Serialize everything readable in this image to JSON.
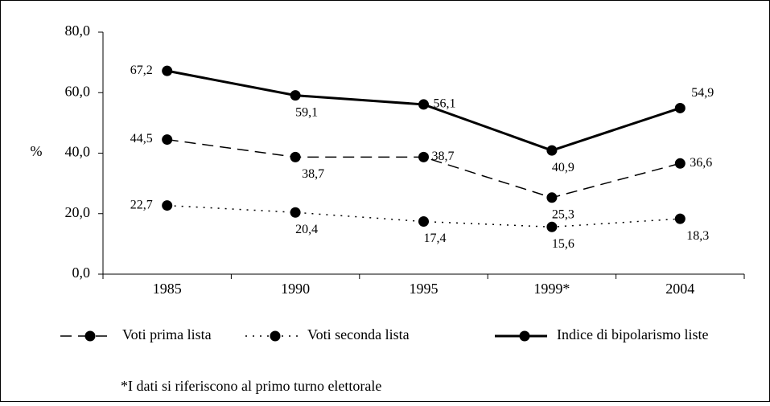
{
  "chart_data": {
    "type": "line",
    "categories": [
      "1985",
      "1990",
      "1995",
      "1999*",
      "2004"
    ],
    "ylabel": "%",
    "ylim": [
      0,
      80
    ],
    "yticks": [
      {
        "value": 0,
        "label": "0,0"
      },
      {
        "value": 20,
        "label": "20,0"
      },
      {
        "value": 40,
        "label": "40,0"
      },
      {
        "value": 60,
        "label": "60,0"
      },
      {
        "value": 80,
        "label": "80,0"
      }
    ],
    "series": [
      {
        "name": "Voti prima lista",
        "color": "#000000",
        "dash": "dashed",
        "values": [
          44.5,
          38.7,
          38.7,
          25.3,
          36.6
        ],
        "value_labels": [
          "44,5",
          "38,7",
          "38,7",
          "25,3",
          "36,6"
        ]
      },
      {
        "name": "Voti seconda lista",
        "color": "#000000",
        "dash": "dotted",
        "values": [
          22.7,
          20.4,
          17.4,
          15.6,
          18.3
        ],
        "value_labels": [
          "22,7",
          "20,4",
          "17,4",
          "15,6",
          "18,3"
        ]
      },
      {
        "name": "Indice di bipolarismo liste",
        "color": "#000000",
        "dash": "solid",
        "values": [
          67.2,
          59.1,
          56.1,
          40.9,
          54.9
        ],
        "value_labels": [
          "67,2",
          "59,1",
          "56,1",
          "40,9",
          "54,9"
        ]
      }
    ],
    "note": "*I dati si riferiscono al primo turno elettorale"
  }
}
